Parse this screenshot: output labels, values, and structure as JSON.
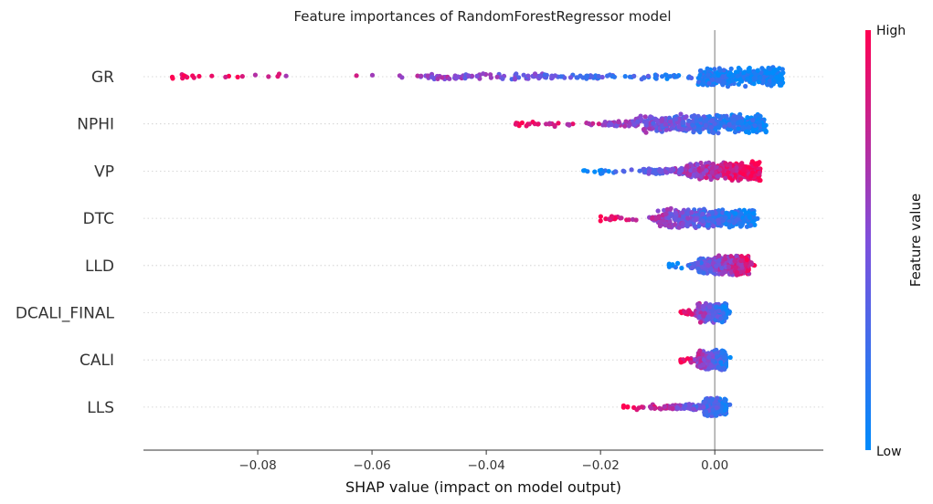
{
  "chart_data": {
    "type": "scatter",
    "subtype": "shap-beeswarm",
    "title": "Feature importances of RandomForestRegressor model",
    "xlabel": "SHAP value (impact on model output)",
    "xlim": [
      -0.1,
      0.019
    ],
    "xticks": [
      -0.08,
      -0.06,
      -0.04,
      -0.02,
      0.0
    ],
    "xtick_labels": [
      "−0.08",
      "−0.06",
      "−0.04",
      "−0.02",
      "0.00"
    ],
    "zero_line": 0.0,
    "features": [
      {
        "name": "GR",
        "min": -0.095,
        "max": 0.013,
        "dense_lo": -0.003,
        "dense_hi": 0.012,
        "high_side": "left"
      },
      {
        "name": "NPHI",
        "min": -0.035,
        "max": 0.011,
        "dense_lo": -0.014,
        "dense_hi": 0.009,
        "high_side": "left"
      },
      {
        "name": "VP",
        "min": -0.023,
        "max": 0.008,
        "dense_lo": -0.005,
        "dense_hi": 0.008,
        "high_side": "right"
      },
      {
        "name": "DTC",
        "min": -0.02,
        "max": 0.0075,
        "dense_lo": -0.01,
        "dense_hi": 0.007,
        "high_side": "left"
      },
      {
        "name": "LLD",
        "min": -0.008,
        "max": 0.008,
        "dense_lo": -0.003,
        "dense_hi": 0.006,
        "high_side": "right"
      },
      {
        "name": "DCALI_FINAL",
        "min": -0.006,
        "max": 0.003,
        "dense_lo": -0.003,
        "dense_hi": 0.002,
        "high_side": "left"
      },
      {
        "name": "CALI",
        "min": -0.006,
        "max": 0.003,
        "dense_lo": -0.003,
        "dense_hi": 0.002,
        "high_side": "left"
      },
      {
        "name": "LLS",
        "min": -0.016,
        "max": 0.0055,
        "dense_lo": -0.002,
        "dense_hi": 0.002,
        "high_side": "left"
      }
    ],
    "colorbar": {
      "title": "Feature value",
      "high_label": "High",
      "low_label": "Low",
      "high_color": "#ff0052",
      "low_color": "#008bfb"
    }
  }
}
